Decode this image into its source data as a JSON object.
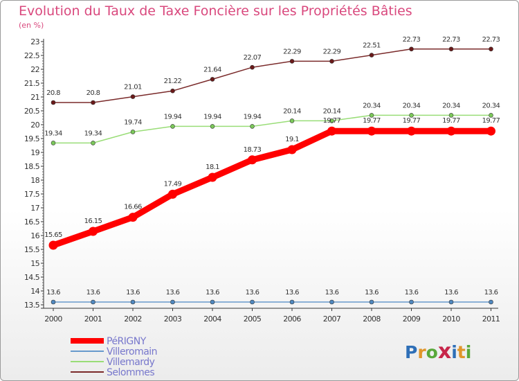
{
  "title": "Evolution du Taux de Taxe Foncière sur les Propriétés Bâties",
  "unit_label": "(en %)",
  "logo": {
    "letters": [
      "P",
      "r",
      "o",
      "x",
      "i",
      "t",
      "i"
    ],
    "colors": [
      "#2e6fb7",
      "#e0962b",
      "#59a83a",
      "#c7264a",
      "#2e6fb7",
      "#e0962b",
      "#59a83a"
    ]
  },
  "chart_data": {
    "type": "line",
    "title": "Evolution du Taux de Taxe Foncière sur les Propriétés Bâties",
    "ylabel": "(en %)",
    "xlabel": "",
    "x": [
      "2000",
      "2001",
      "2002",
      "2003",
      "2004",
      "2005",
      "2006",
      "2007",
      "2008",
      "2009",
      "2010",
      "2011"
    ],
    "ylim": [
      13.5,
      23
    ],
    "ytick_step": 0.5,
    "grid": false,
    "legend_position": "bottom-left",
    "series": [
      {
        "name": "PéRIGNY",
        "color": "#ff0000",
        "values": [
          15.65,
          16.15,
          16.66,
          17.49,
          18.1,
          18.73,
          19.1,
          19.77,
          19.77,
          19.77,
          19.77,
          19.77
        ],
        "labels": [
          "15.65",
          "16.15",
          "16.66",
          "17.49",
          "18.1",
          "18.73",
          "19.1",
          "19.77",
          "19.77",
          "19.77",
          "19.77",
          "19.77"
        ]
      },
      {
        "name": "Villeromain",
        "color": "#6699cc",
        "values": [
          13.6,
          13.6,
          13.6,
          13.6,
          13.6,
          13.6,
          13.6,
          13.6,
          13.6,
          13.6,
          13.6,
          13.6
        ],
        "labels": [
          "13.6",
          "13.6",
          "13.6",
          "13.6",
          "13.6",
          "13.6",
          "13.6",
          "13.6",
          "13.6",
          "13.6",
          "13.6",
          "13.6"
        ]
      },
      {
        "name": "Villemardy",
        "color": "#99dd77",
        "values": [
          19.34,
          19.34,
          19.74,
          19.94,
          19.94,
          19.94,
          20.14,
          20.14,
          20.34,
          20.34,
          20.34,
          20.34
        ],
        "labels": [
          "19.34",
          "19.34",
          "19.74",
          "19.94",
          "19.94",
          "19.94",
          "20.14",
          "20.14",
          "20.34",
          "20.34",
          "20.34",
          "20.34"
        ]
      },
      {
        "name": "Selommes",
        "color": "#7a2a2a",
        "values": [
          20.8,
          20.8,
          21.01,
          21.22,
          21.64,
          22.07,
          22.29,
          22.29,
          22.51,
          22.73,
          22.73,
          22.73
        ],
        "labels": [
          "20.8",
          "20.8",
          "21.01",
          "21.22",
          "21.64",
          "22.07",
          "22.29",
          "22.29",
          "22.51",
          "22.73",
          "22.73",
          "22.73"
        ]
      }
    ]
  }
}
